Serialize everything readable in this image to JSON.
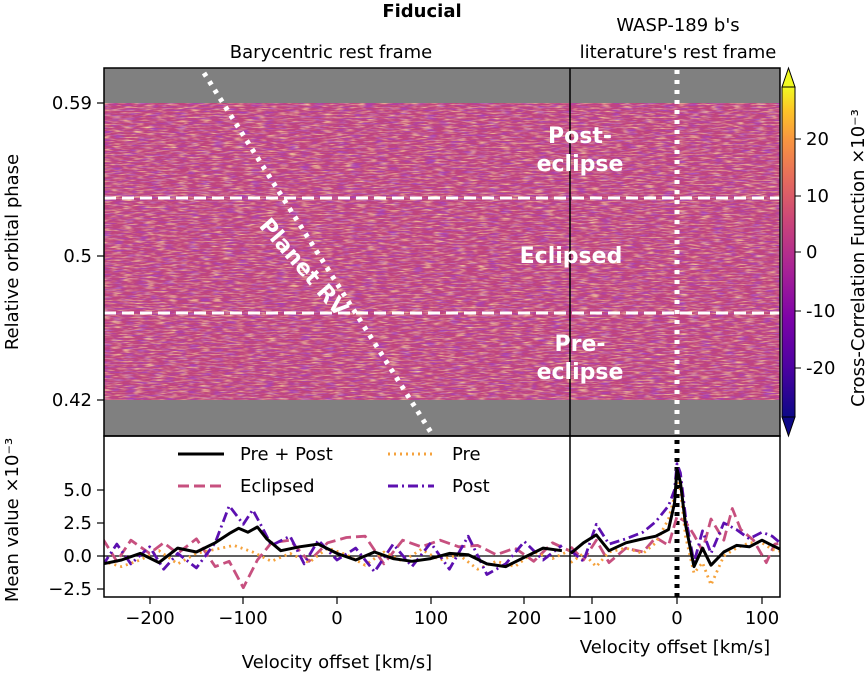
{
  "chart_data": {
    "title": "Fiducial",
    "panels": [
      {
        "type": "heatmap",
        "subtitle_left": "Barycentric rest frame",
        "subtitle_right": "WASP-189 b's literature's rest frame",
        "ylabel": "Relative orbital phase",
        "yticks": [
          "0.59",
          "0.5",
          "0.42"
        ],
        "ylim": [
          0.42,
          0.59
        ],
        "colorbar_label": "Cross-Correlation Function ×10⁻³",
        "colorbar_ticks": [
          "20",
          "10",
          "0",
          "-10",
          "-20"
        ],
        "colorbar_range": [
          -27,
          27
        ],
        "colormap": "plasma",
        "phase_boundaries": [
          0.473,
          0.53
        ],
        "region_labels": [
          {
            "lines": [
              "Post-",
              "eclipse"
            ]
          },
          {
            "lines": [
              "Eclipsed"
            ]
          },
          {
            "lines": [
              "Pre-",
              "eclipse"
            ]
          }
        ],
        "annotation": "Planet RV"
      },
      {
        "type": "line",
        "ylabel": "Mean value ×10⁻³",
        "xlabel_left": "Velocity offset [km/s]",
        "xlabel_right": "Velocity offset [km/s]",
        "xticks_left": [
          "−200",
          "−100",
          "0",
          "100",
          "200"
        ],
        "xticks_right": [
          "−100",
          "0",
          "100"
        ],
        "yticks": [
          "5.0",
          "2.5",
          "0.0",
          "−2.5"
        ],
        "ylim": [
          -3.0,
          8.0
        ],
        "xlim_left": [
          -250,
          248
        ],
        "xlim_right": [
          -125,
          125
        ],
        "legend": [
          "Pre + Post",
          "Pre",
          "Eclipsed",
          "Post"
        ],
        "series": [
          {
            "name": "Pre + Post",
            "color": "#000000",
            "left": [
              [
                -250,
                -0.6
              ],
              [
                -230,
                -0.3
              ],
              [
                -210,
                0.2
              ],
              [
                -190,
                -0.5
              ],
              [
                -170,
                0.6
              ],
              [
                -150,
                0.3
              ],
              [
                -130,
                1.0
              ],
              [
                -115,
                1.7
              ],
              [
                -105,
                2.1
              ],
              [
                -95,
                1.8
              ],
              [
                -85,
                2.2
              ],
              [
                -75,
                1.3
              ],
              [
                -60,
                0.4
              ],
              [
                -40,
                0.7
              ],
              [
                -20,
                0.9
              ],
              [
                0,
                0.2
              ],
              [
                20,
                -0.3
              ],
              [
                40,
                0.3
              ],
              [
                60,
                -0.2
              ],
              [
                80,
                -0.4
              ],
              [
                100,
                -0.2
              ],
              [
                120,
                0.2
              ],
              [
                140,
                0.1
              ],
              [
                160,
                -0.6
              ],
              [
                180,
                -0.8
              ],
              [
                200,
                -0.1
              ],
              [
                220,
                0.6
              ],
              [
                240,
                0.4
              ]
            ],
            "right": [
              [
                -125,
                0.2
              ],
              [
                -110,
                1.0
              ],
              [
                -95,
                1.6
              ],
              [
                -80,
                0.4
              ],
              [
                -60,
                1.0
              ],
              [
                -40,
                1.3
              ],
              [
                -25,
                1.5
              ],
              [
                -10,
                2.0
              ],
              [
                -3,
                4.0
              ],
              [
                0,
                6.6
              ],
              [
                4,
                5.6
              ],
              [
                10,
                2.4
              ],
              [
                20,
                -0.8
              ],
              [
                30,
                0.6
              ],
              [
                40,
                -0.7
              ],
              [
                55,
                0.3
              ],
              [
                70,
                0.8
              ],
              [
                85,
                0.7
              ],
              [
                100,
                1.2
              ],
              [
                112,
                0.8
              ],
              [
                125,
                0.4
              ]
            ]
          },
          {
            "name": "Pre",
            "color": "#f5a23c",
            "left": [
              [
                -250,
                -0.4
              ],
              [
                -230,
                -0.8
              ],
              [
                -210,
                -0.3
              ],
              [
                -190,
                0.4
              ],
              [
                -170,
                -0.6
              ],
              [
                -150,
                0.2
              ],
              [
                -130,
                0.5
              ],
              [
                -110,
                0.8
              ],
              [
                -90,
                0.3
              ],
              [
                -70,
                -0.4
              ],
              [
                -50,
                0.2
              ],
              [
                -30,
                -0.5
              ],
              [
                -10,
                0.6
              ],
              [
                10,
                0.1
              ],
              [
                30,
                -0.7
              ],
              [
                50,
                0.3
              ],
              [
                70,
                -0.4
              ],
              [
                90,
                0.5
              ],
              [
                110,
                -0.3
              ],
              [
                130,
                0.1
              ],
              [
                150,
                -1.0
              ],
              [
                170,
                -0.4
              ],
              [
                190,
                -0.8
              ],
              [
                210,
                0.3
              ],
              [
                230,
                -0.2
              ],
              [
                248,
                0.4
              ]
            ],
            "right": [
              [
                -125,
                -0.5
              ],
              [
                -110,
                0.2
              ],
              [
                -95,
                -0.8
              ],
              [
                -80,
                0.3
              ],
              [
                -60,
                0.6
              ],
              [
                -40,
                0.2
              ],
              [
                -25,
                1.0
              ],
              [
                -10,
                2.8
              ],
              [
                -3,
                4.5
              ],
              [
                0,
                6.2
              ],
              [
                4,
                5.0
              ],
              [
                10,
                1.5
              ],
              [
                20,
                -1.3
              ],
              [
                30,
                -0.5
              ],
              [
                40,
                -2.2
              ],
              [
                55,
                0.0
              ],
              [
                70,
                0.6
              ],
              [
                85,
                1.0
              ],
              [
                100,
                1.0
              ],
              [
                112,
                0.5
              ],
              [
                125,
                0.3
              ]
            ]
          },
          {
            "name": "Eclipsed",
            "color": "#c7507f",
            "left": [
              [
                -250,
                1.3
              ],
              [
                -235,
                -0.4
              ],
              [
                -220,
                1.2
              ],
              [
                -200,
                0.2
              ],
              [
                -185,
                1.0
              ],
              [
                -170,
                0.2
              ],
              [
                -150,
                1.3
              ],
              [
                -130,
                -0.8
              ],
              [
                -115,
                -0.4
              ],
              [
                -100,
                -2.4
              ],
              [
                -85,
                -0.3
              ],
              [
                -70,
                1.0
              ],
              [
                -50,
                1.2
              ],
              [
                -30,
                -0.4
              ],
              [
                -10,
                1.0
              ],
              [
                10,
                1.4
              ],
              [
                30,
                1.5
              ],
              [
                50,
                -0.6
              ],
              [
                70,
                1.2
              ],
              [
                90,
                0.7
              ],
              [
                110,
                1.2
              ],
              [
                130,
                0.7
              ],
              [
                150,
                0.8
              ],
              [
                170,
                0.1
              ],
              [
                190,
                0.6
              ],
              [
                210,
                -0.4
              ],
              [
                230,
                1.0
              ],
              [
                248,
                0.4
              ]
            ],
            "right": [
              [
                -125,
                0.7
              ],
              [
                -110,
                -0.3
              ],
              [
                -95,
                1.2
              ],
              [
                -80,
                -0.5
              ],
              [
                -60,
                0.6
              ],
              [
                -40,
                0.3
              ],
              [
                -25,
                1.4
              ],
              [
                -10,
                0.8
              ],
              [
                0,
                3.0
              ],
              [
                10,
                2.6
              ],
              [
                20,
                1.6
              ],
              [
                30,
                0.4
              ],
              [
                40,
                2.8
              ],
              [
                55,
                1.2
              ],
              [
                65,
                3.6
              ],
              [
                75,
                2.0
              ],
              [
                90,
                1.2
              ],
              [
                105,
                -0.5
              ],
              [
                115,
                0.9
              ],
              [
                125,
                1.0
              ]
            ]
          },
          {
            "name": "Post",
            "color": "#5c10b0",
            "left": [
              [
                -250,
                -0.7
              ],
              [
                -235,
                0.9
              ],
              [
                -220,
                -0.6
              ],
              [
                -200,
                0.7
              ],
              [
                -185,
                -1.0
              ],
              [
                -170,
                0.2
              ],
              [
                -150,
                -0.9
              ],
              [
                -130,
                1.0
              ],
              [
                -115,
                3.8
              ],
              [
                -100,
                2.4
              ],
              [
                -90,
                3.5
              ],
              [
                -80,
                2.2
              ],
              [
                -70,
                0.8
              ],
              [
                -50,
                1.5
              ],
              [
                -35,
                -0.6
              ],
              [
                -20,
                1.2
              ],
              [
                0,
                -0.3
              ],
              [
                20,
                0.6
              ],
              [
                40,
                -1.2
              ],
              [
                60,
                0.9
              ],
              [
                80,
                -0.8
              ],
              [
                100,
                1.0
              ],
              [
                120,
                -1.0
              ],
              [
                140,
                1.5
              ],
              [
                160,
                -1.4
              ],
              [
                180,
                -0.6
              ],
              [
                200,
                1.1
              ],
              [
                220,
                -0.3
              ],
              [
                240,
                0.8
              ]
            ],
            "right": [
              [
                -125,
                0.4
              ],
              [
                -110,
                -0.4
              ],
              [
                -95,
                2.4
              ],
              [
                -80,
                0.9
              ],
              [
                -60,
                1.3
              ],
              [
                -40,
                1.8
              ],
              [
                -25,
                2.6
              ],
              [
                -10,
                3.8
              ],
              [
                -3,
                5.0
              ],
              [
                0,
                7.0
              ],
              [
                4,
                6.3
              ],
              [
                10,
                3.0
              ],
              [
                20,
                -0.5
              ],
              [
                30,
                1.9
              ],
              [
                40,
                0.2
              ],
              [
                55,
                2.5
              ],
              [
                70,
                2.0
              ],
              [
                85,
                1.3
              ],
              [
                100,
                1.8
              ],
              [
                112,
                1.5
              ],
              [
                125,
                0.8
              ]
            ]
          }
        ]
      }
    ]
  }
}
